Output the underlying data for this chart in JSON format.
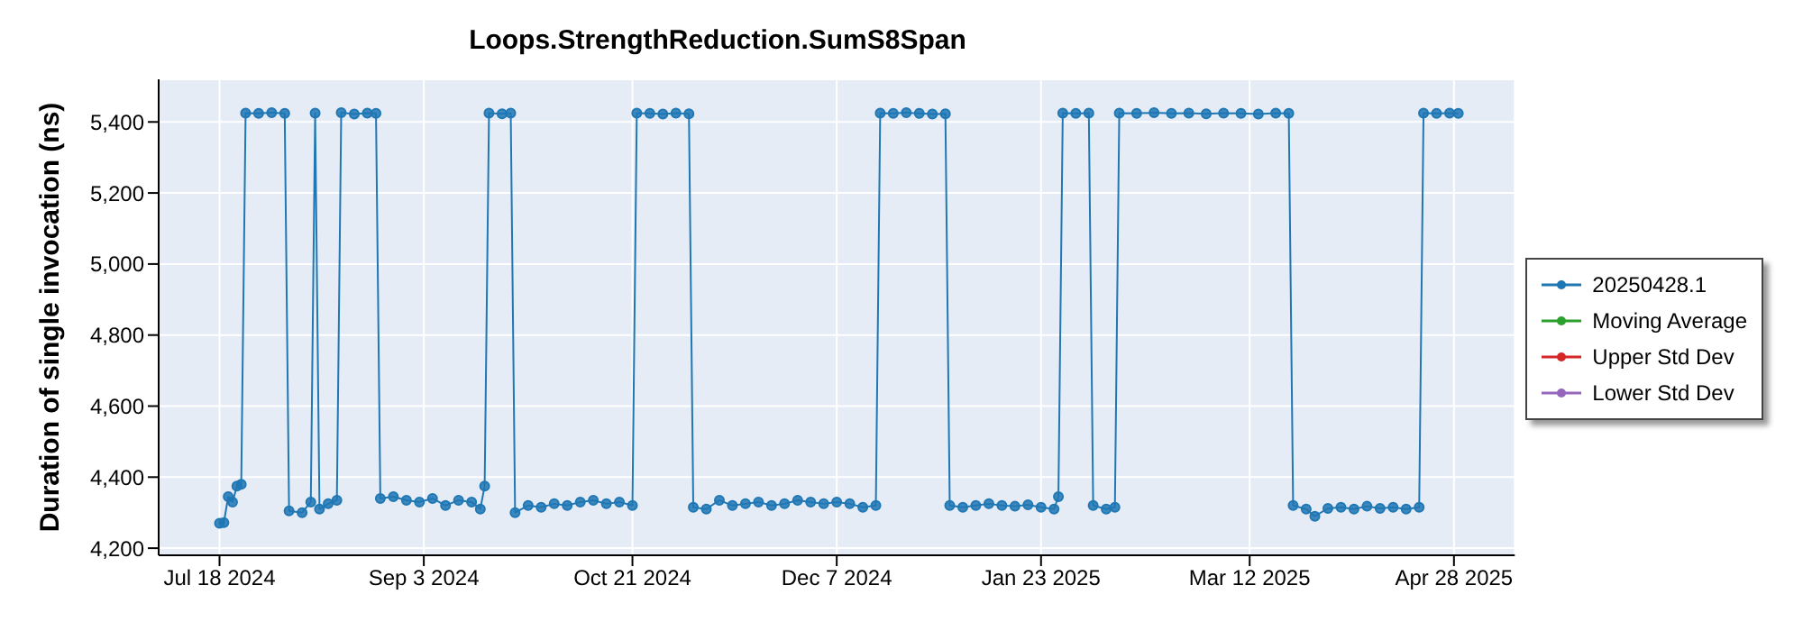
{
  "chart_data": {
    "type": "line",
    "title": "Loops.StrengthReduction.SumS8Span",
    "ylabel": "Duration of single invocation (ns)",
    "xlim": [
      "2024-07-04",
      "2025-05-12"
    ],
    "xticks": [
      {
        "value": "2024-07-18",
        "label": "Jul 18 2024"
      },
      {
        "value": "2024-09-03",
        "label": "Sep 3 2024"
      },
      {
        "value": "2024-10-21",
        "label": "Oct 21 2024"
      },
      {
        "value": "2024-12-07",
        "label": "Dec 7 2024"
      },
      {
        "value": "2025-01-23",
        "label": "Jan 23 2025"
      },
      {
        "value": "2025-03-12",
        "label": "Mar 12 2025"
      },
      {
        "value": "2025-04-28",
        "label": "Apr 28 2025"
      }
    ],
    "ylim": [
      4180,
      5520
    ],
    "yticks": [
      {
        "value": 4200,
        "label": "4,200"
      },
      {
        "value": 4400,
        "label": "4,400"
      },
      {
        "value": 4600,
        "label": "4,600"
      },
      {
        "value": 4800,
        "label": "4,800"
      },
      {
        "value": 5000,
        "label": "5,000"
      },
      {
        "value": 5200,
        "label": "5,200"
      },
      {
        "value": 5400,
        "label": "5,400"
      }
    ],
    "grid": true,
    "legend": "right",
    "marker": "circle",
    "line_style": "solid",
    "series": [
      {
        "name": "20250428.1",
        "color": "#1f77b4",
        "x": [
          "2024-07-18",
          "2024-07-19",
          "2024-07-20",
          "2024-07-21",
          "2024-07-22",
          "2024-07-23",
          "2024-07-24",
          "2024-07-27",
          "2024-07-30",
          "2024-08-02",
          "2024-08-03",
          "2024-08-06",
          "2024-08-08",
          "2024-08-09",
          "2024-08-10",
          "2024-08-12",
          "2024-08-14",
          "2024-08-15",
          "2024-08-18",
          "2024-08-21",
          "2024-08-23",
          "2024-08-24",
          "2024-08-27",
          "2024-08-30",
          "2024-09-02",
          "2024-09-05",
          "2024-09-08",
          "2024-09-11",
          "2024-09-14",
          "2024-09-16",
          "2024-09-17",
          "2024-09-18",
          "2024-09-21",
          "2024-09-23",
          "2024-09-24",
          "2024-09-27",
          "2024-09-30",
          "2024-10-03",
          "2024-10-06",
          "2024-10-09",
          "2024-10-12",
          "2024-10-15",
          "2024-10-18",
          "2024-10-21",
          "2024-10-22",
          "2024-10-25",
          "2024-10-28",
          "2024-10-31",
          "2024-11-03",
          "2024-11-04",
          "2024-11-07",
          "2024-11-10",
          "2024-11-13",
          "2024-11-16",
          "2024-11-19",
          "2024-11-22",
          "2024-11-25",
          "2024-11-28",
          "2024-12-01",
          "2024-12-04",
          "2024-12-07",
          "2024-12-10",
          "2024-12-13",
          "2024-12-16",
          "2024-12-17",
          "2024-12-20",
          "2024-12-23",
          "2024-12-26",
          "2024-12-29",
          "2025-01-01",
          "2025-01-02",
          "2025-01-05",
          "2025-01-08",
          "2025-01-11",
          "2025-01-14",
          "2025-01-17",
          "2025-01-20",
          "2025-01-23",
          "2025-01-26",
          "2025-01-27",
          "2025-01-28",
          "2025-01-31",
          "2025-02-03",
          "2025-02-04",
          "2025-02-07",
          "2025-02-09",
          "2025-02-10",
          "2025-02-14",
          "2025-02-18",
          "2025-02-22",
          "2025-02-26",
          "2025-03-02",
          "2025-03-06",
          "2025-03-10",
          "2025-03-14",
          "2025-03-18",
          "2025-03-21",
          "2025-03-22",
          "2025-03-25",
          "2025-03-27",
          "2025-03-30",
          "2025-04-02",
          "2025-04-05",
          "2025-04-08",
          "2025-04-11",
          "2025-04-14",
          "2025-04-17",
          "2025-04-20",
          "2025-04-21",
          "2025-04-24",
          "2025-04-27",
          "2025-04-29"
        ],
        "values": [
          4270,
          4272,
          4345,
          4330,
          4375,
          4380,
          5425,
          5424,
          5426,
          5424,
          4305,
          4300,
          4330,
          5425,
          4310,
          4325,
          4335,
          5426,
          5422,
          5425,
          5424,
          4340,
          4345,
          4335,
          4330,
          4340,
          4320,
          4335,
          4330,
          4310,
          4375,
          5425,
          5423,
          5425,
          4300,
          4320,
          4315,
          4325,
          4320,
          4330,
          4335,
          4325,
          4330,
          4320,
          5425,
          5424,
          5422,
          5425,
          5423,
          4315,
          4310,
          4335,
          4320,
          4325,
          4330,
          4320,
          4325,
          4335,
          4330,
          4325,
          4330,
          4325,
          4315,
          4320,
          5425,
          5424,
          5426,
          5424,
          5422,
          5423,
          4320,
          4315,
          4320,
          4325,
          4320,
          4318,
          4322,
          4315,
          4310,
          4345,
          5425,
          5424,
          5425,
          4320,
          4310,
          4315,
          5425,
          5424,
          5426,
          5424,
          5425,
          5423,
          5425,
          5424,
          5422,
          5425,
          5424,
          4320,
          4310,
          4290,
          4312,
          4315,
          4310,
          4318,
          4312,
          4315,
          4310,
          4315,
          5425,
          5424,
          5425,
          5424
        ]
      },
      {
        "name": "Moving Average",
        "color": "#2ca02c"
      },
      {
        "name": "Upper Std Dev",
        "color": "#d62728"
      },
      {
        "name": "Lower Std Dev",
        "color": "#9467bd"
      }
    ]
  }
}
